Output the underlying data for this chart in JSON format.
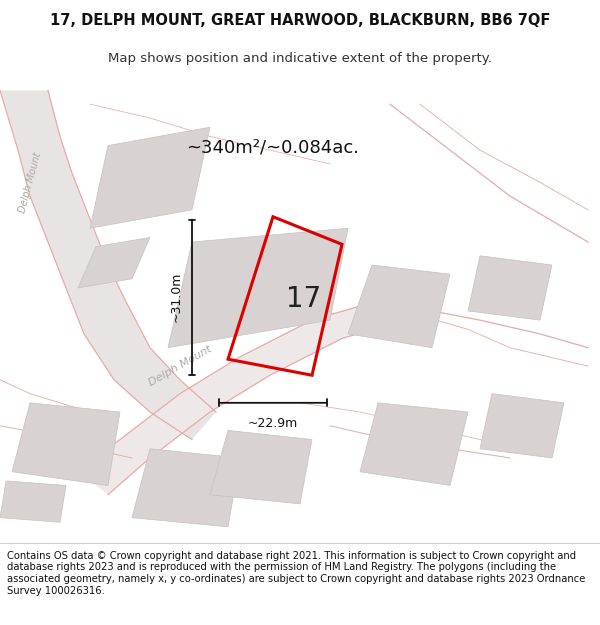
{
  "title_line1": "17, DELPH MOUNT, GREAT HARWOOD, BLACKBURN, BB6 7QF",
  "title_line2": "Map shows position and indicative extent of the property.",
  "footer_text": "Contains OS data © Crown copyright and database right 2021. This information is subject to Crown copyright and database rights 2023 and is reproduced with the permission of HM Land Registry. The polygons (including the associated geometry, namely x, y co-ordinates) are subject to Crown copyright and database rights 2023 Ordnance Survey 100026316.",
  "area_label": "~340m²/~0.084ac.",
  "dim_vertical": "~31.0m",
  "dim_horizontal": "~22.9m",
  "property_number": "17",
  "bg_color": "#ffffff",
  "map_bg": "#faf7f7",
  "building_color": "#d8d2d2",
  "building_edge": "#c8c0c0",
  "road_line_color": "#e8aaaa",
  "property_polygon_color": "#dd0000",
  "dim_line_color": "#111111",
  "title_fontsize": 10.5,
  "subtitle_fontsize": 9.5,
  "footer_fontsize": 7.2,
  "area_fontsize": 13,
  "dim_fontsize": 9,
  "number_fontsize": 20,
  "road_label_color": "#aaaaaa",
  "road_label_fontsize": 8
}
